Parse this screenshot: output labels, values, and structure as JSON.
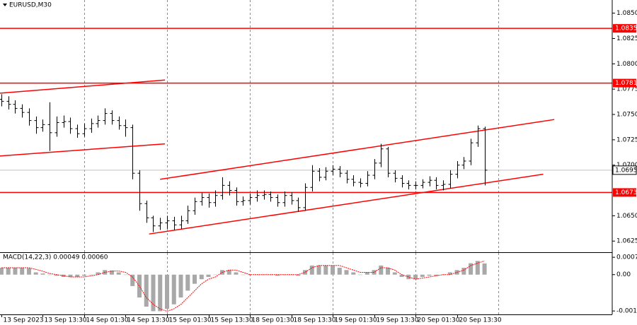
{
  "chart_data": [
    {
      "type": "ohlc",
      "title": "EURUSD,M30",
      "color": "#000000",
      "xlim": [
        -0.2,
        88.5
      ],
      "xgrid": [
        12,
        24,
        36,
        48,
        60,
        72
      ],
      "ylim": [
        1.0614,
        1.0863
      ],
      "yticks": [
        {
          "value": 1.085,
          "label": "1.0850"
        },
        1.0825,
        {
          "value": 1.08,
          "label": "1.0800"
        },
        1.0775,
        {
          "value": 1.075,
          "label": "1.0750"
        },
        1.0725,
        {
          "value": 1.07,
          "label": "1.0700"
        },
        {
          "value": 1.065,
          "label": "1.0650"
        },
        1.0625
      ],
      "open": [
        1.0765,
        1.0763,
        1.076,
        1.0756,
        1.0752,
        1.0744,
        1.0737,
        1.074,
        1.0732,
        1.0742,
        1.0743,
        1.0736,
        1.0731,
        1.0736,
        1.0741,
        1.0744,
        1.0751,
        1.0744,
        1.0739,
        1.0737,
        1.0692,
        1.0662,
        1.0648,
        1.064,
        1.0643,
        1.0645,
        1.0641,
        1.0645,
        1.0655,
        1.0664,
        1.0668,
        1.0663,
        1.067,
        1.068,
        1.0675,
        1.0664,
        1.0665,
        1.0668,
        1.067,
        1.0671,
        1.0668,
        1.0663,
        1.067,
        1.0665,
        1.0658,
        1.0678,
        1.0694,
        1.0688,
        1.0694,
        1.0696,
        1.0692,
        1.0686,
        1.0683,
        1.0682,
        1.069,
        1.0702,
        1.0716,
        1.0692,
        1.0687,
        1.0682,
        1.068,
        1.068,
        1.0683,
        1.0685,
        1.068,
        1.0681,
        1.0691,
        1.07,
        1.0704,
        1.0722,
        1.0736
      ],
      "high": [
        1.077,
        1.0768,
        1.0764,
        1.076,
        1.0756,
        1.0748,
        1.0745,
        1.0762,
        1.0748,
        1.0749,
        1.0747,
        1.074,
        1.0741,
        1.0746,
        1.0749,
        1.0756,
        1.0754,
        1.0748,
        1.0745,
        1.074,
        1.0695,
        1.0665,
        1.065,
        1.0648,
        1.065,
        1.0649,
        1.065,
        1.066,
        1.0668,
        1.0673,
        1.0672,
        1.0675,
        1.0688,
        1.0684,
        1.0678,
        1.0669,
        1.0672,
        1.0675,
        1.0675,
        1.0674,
        1.0671,
        1.0674,
        1.0673,
        1.0668,
        1.0682,
        1.07,
        1.0697,
        1.0698,
        1.07,
        1.0699,
        1.0695,
        1.069,
        1.0687,
        1.0694,
        1.0706,
        1.0721,
        1.0718,
        1.0695,
        1.069,
        1.0685,
        1.0684,
        1.0686,
        1.0689,
        1.0688,
        1.0685,
        1.0695,
        1.0704,
        1.0708,
        1.0726,
        1.0739,
        1.0738
      ],
      "low": [
        1.0758,
        1.0755,
        1.0751,
        1.0747,
        1.0739,
        1.0731,
        1.0733,
        1.0714,
        1.0728,
        1.0737,
        1.0731,
        1.0727,
        1.0728,
        1.0732,
        1.0737,
        1.074,
        1.074,
        1.0735,
        1.0728,
        1.0686,
        1.0655,
        1.0643,
        1.0634,
        1.0636,
        1.0637,
        1.0636,
        1.0637,
        1.0642,
        1.0651,
        1.066,
        1.0658,
        1.0659,
        1.0666,
        1.067,
        1.066,
        1.066,
        1.0661,
        1.0664,
        1.0666,
        1.0664,
        1.0659,
        1.0659,
        1.0661,
        1.0654,
        1.0655,
        1.0674,
        1.0684,
        1.0685,
        1.069,
        1.0688,
        1.0682,
        1.0679,
        1.0678,
        1.0679,
        1.0686,
        1.0698,
        1.0688,
        1.0683,
        1.0678,
        1.0676,
        1.0676,
        1.0677,
        1.0679,
        1.0676,
        1.0675,
        1.0677,
        1.0687,
        1.0696,
        1.07,
        1.0718,
        1.068
      ],
      "close": [
        1.0763,
        1.076,
        1.0756,
        1.0752,
        1.0744,
        1.0737,
        1.074,
        1.0732,
        1.0742,
        1.0743,
        1.0736,
        1.0731,
        1.0736,
        1.0741,
        1.0744,
        1.0751,
        1.0744,
        1.0739,
        1.0737,
        1.0692,
        1.0662,
        1.0648,
        1.064,
        1.0643,
        1.0645,
        1.0641,
        1.0645,
        1.0655,
        1.0664,
        1.0668,
        1.0663,
        1.067,
        1.068,
        1.0675,
        1.0664,
        1.0665,
        1.0668,
        1.067,
        1.0671,
        1.0668,
        1.0663,
        1.067,
        1.0665,
        1.0658,
        1.0678,
        1.0694,
        1.0688,
        1.0694,
        1.0696,
        1.0692,
        1.0686,
        1.0683,
        1.0682,
        1.069,
        1.0702,
        1.0716,
        1.0692,
        1.0687,
        1.0682,
        1.068,
        1.068,
        1.0683,
        1.0685,
        1.068,
        1.0681,
        1.0691,
        1.07,
        1.0704,
        1.0722,
        1.0736,
        1.0695
      ],
      "levels": [
        1.0835,
        1.0781,
        1.0673
      ],
      "level_color": "#ff0000",
      "last_price": 1.0695,
      "trendlines": [
        {
          "x": [
            -0.2,
            23.7
          ],
          "y": [
            1.0771,
            1.0784
          ]
        },
        {
          "x": [
            -0.2,
            23.7
          ],
          "y": [
            1.0709,
            1.0721
          ]
        },
        {
          "x": [
            23.0,
            80.1
          ],
          "y": [
            1.0686,
            1.0745
          ]
        },
        {
          "x": [
            21.4,
            78.5
          ],
          "y": [
            1.0632,
            1.0691
          ]
        }
      ],
      "trendline_color": "#ff0000"
    },
    {
      "type": "macd",
      "title": "MACD(14,22,3) 0.00049 0.00060",
      "xlim": [
        -0.2,
        88.5
      ],
      "ylim": [
        -0.00174,
        0.00095
      ],
      "yticks": [
        0.00076,
        {
          "value": 0,
          "label": "0.00"
        },
        -0.00159
      ],
      "xticks": [
        {
          "value": 0,
          "label": "13 Sep 2023"
        },
        {
          "value": 6,
          "label": "13 Sep 13:30"
        },
        {
          "value": 12,
          "label": "14 Sep 01:30"
        },
        {
          "value": 18,
          "label": "14 Sep 13:30"
        },
        {
          "value": 24,
          "label": "15 Sep 01:30"
        },
        {
          "value": 30,
          "label": "15 Sep 13:30"
        },
        {
          "value": 36,
          "label": "18 Sep 01:30"
        },
        {
          "value": 42,
          "label": "18 Sep 13:30"
        },
        {
          "value": 48,
          "label": "19 Sep 01:30"
        },
        {
          "value": 54,
          "label": "19 Sep 13:30"
        },
        {
          "value": 60,
          "label": "20 Sep 01:30"
        },
        {
          "value": 66,
          "label": "20 Sep 13:30"
        }
      ],
      "series": [
        {
          "kind": "histogram",
          "color": "#a8a8a8",
          "values": [
            0.0003,
            0.0003,
            0.0003,
            0.0003,
            0.00028,
            0.0001,
            5e-05,
            0,
            -5e-05,
            -0.0001,
            -0.0001,
            -0.0001,
            -5e-05,
            0,
            0.0001,
            0.0002,
            0.00018,
            0.0001,
            0,
            -0.0005,
            -0.001,
            -0.0014,
            -0.0016,
            -0.0016,
            -0.0015,
            -0.0013,
            -0.001,
            -0.0007,
            -0.0004,
            -0.0002,
            -0.0001,
            0,
            0.0002,
            0.0002,
            0.0001,
            0,
            0,
            0,
            0,
            0,
            -5e-05,
            0,
            0,
            -5e-05,
            0.0002,
            0.0004,
            0.0004,
            0.0004,
            0.0004,
            0.0003,
            0.0002,
            0.0001,
            0,
            0.0001,
            0.0002,
            0.0004,
            0.0003,
            0.0001,
            -0.0001,
            -0.0002,
            -0.0002,
            -0.0001,
            -5e-05,
            -5e-05,
            0,
            0.0001,
            0.0002,
            0.0003,
            0.0005,
            0.0006,
            0.00049
          ]
        },
        {
          "kind": "line",
          "color": "#ff0000",
          "values": [
            0.0003,
            0.0003,
            0.0003,
            0.0003,
            0.0003,
            0.00023,
            0.00015,
            5e-05,
            0,
            -5e-05,
            -0.0001,
            -0.0001,
            -0.0001,
            -5e-05,
            0,
            0.0001,
            0.00016,
            0.00016,
            0.0001,
            -0.0001,
            -0.0005,
            -0.001,
            -0.0013,
            -0.0015,
            -0.0016,
            -0.0015,
            -0.0013,
            -0.001,
            -0.0007,
            -0.0004,
            -0.0002,
            -0.0001,
            0.0001,
            0.0002,
            0.0002,
            0.0001,
            0,
            0,
            0,
            0,
            0,
            0,
            0,
            0,
            0.0001,
            0.0003,
            0.0004,
            0.0004,
            0.0004,
            0.0004,
            0.0003,
            0.0002,
            0.0001,
            0.0001,
            0.0001,
            0.0003,
            0.0003,
            0.0002,
            0,
            -0.0001,
            -0.0002,
            -0.00015,
            -0.0001,
            -5e-05,
            0,
            0,
            0.0001,
            0.0002,
            0.0004,
            0.0005,
            0.0006
          ]
        }
      ]
    }
  ]
}
